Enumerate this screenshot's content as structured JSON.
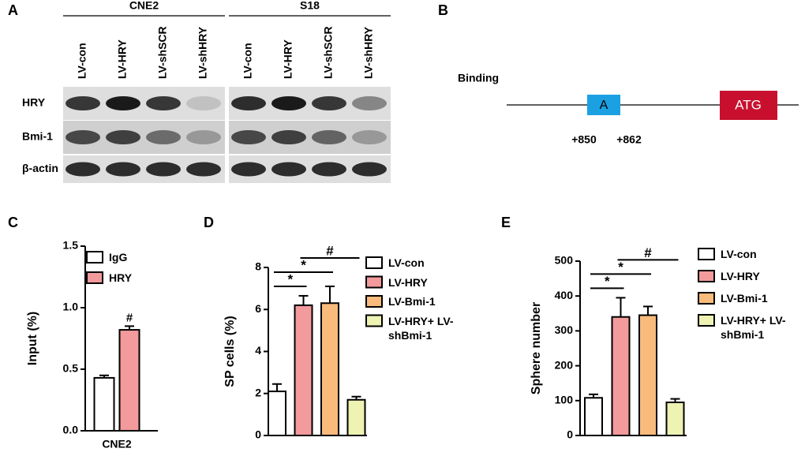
{
  "blot": {
    "panel": "A",
    "groups": [
      "CNE2",
      "S18"
    ],
    "lanes": [
      "LV-con",
      "LV-HRY",
      "LV-shSCR",
      "LV-shHRY",
      "LV-con",
      "LV-HRY",
      "LV-shSCR",
      "LV-shHRY"
    ],
    "rows": [
      "HRY",
      "Bmi-1",
      "β-actin"
    ]
  },
  "diagram": {
    "panel": "B",
    "title": "Binding",
    "site": "A",
    "start": "+850",
    "end": "+862",
    "codon": "ATG"
  },
  "chart_data": [
    {
      "type": "bar",
      "panel": "C",
      "ylabel": "Input (%)",
      "categories": [
        "CNE2"
      ],
      "series": [
        {
          "name": "IgG",
          "color": "#ffffff",
          "values": [
            0.43
          ],
          "errors": [
            0.02
          ]
        },
        {
          "name": "HRY",
          "color": "#f29a9c",
          "values": [
            0.82
          ],
          "errors": [
            0.03
          ]
        }
      ],
      "annotations": [
        {
          "text": "#",
          "series": 1
        }
      ],
      "ylim": [
        0,
        1.5
      ],
      "yticks": [
        {
          "value": 0,
          "label": "0.0"
        },
        0.5,
        {
          "value": 1,
          "label": "1.0"
        },
        1.5
      ]
    },
    {
      "type": "bar",
      "panel": "D",
      "ylabel": "SP cells (%)",
      "categories": [
        null
      ],
      "series": [
        {
          "name": "LV-con",
          "color": "#ffffff",
          "values": [
            2.1
          ],
          "errors": [
            0.35
          ]
        },
        {
          "name": "LV-HRY",
          "color": "#f29a9c",
          "values": [
            6.2
          ],
          "errors": [
            0.45
          ]
        },
        {
          "name": "LV-Bmi-1",
          "color": "#f8bb7c",
          "values": [
            6.3
          ],
          "errors": [
            0.8
          ]
        },
        {
          "name": "LV-HRY+ LV-shBmi-1",
          "color": "#eef2b2",
          "values": [
            1.7
          ],
          "errors": [
            0.15
          ]
        }
      ],
      "brackets": [
        {
          "text": "*",
          "between": [
            0,
            1
          ]
        },
        {
          "text": "*",
          "between": [
            0,
            2
          ]
        },
        {
          "text": "#",
          "between": [
            1,
            3
          ]
        }
      ],
      "ylim": [
        0,
        8
      ],
      "yticks": [
        0,
        2,
        4,
        6,
        8
      ]
    },
    {
      "type": "bar",
      "panel": "E",
      "ylabel": "Sphere number",
      "categories": [
        null
      ],
      "series": [
        {
          "name": "LV-con",
          "color": "#ffffff",
          "values": [
            108
          ],
          "errors": [
            10
          ]
        },
        {
          "name": "LV-HRY",
          "color": "#f29a9c",
          "values": [
            340
          ],
          "errors": [
            55
          ]
        },
        {
          "name": "LV-Bmi-1",
          "color": "#f8bb7c",
          "values": [
            345
          ],
          "errors": [
            25
          ]
        },
        {
          "name": "LV-HRY+ LV-shBmi-1",
          "color": "#eef2b2",
          "values": [
            95
          ],
          "errors": [
            10
          ]
        }
      ],
      "brackets": [
        {
          "text": "*",
          "between": [
            0,
            1
          ]
        },
        {
          "text": "*",
          "between": [
            0,
            2
          ]
        },
        {
          "text": "#",
          "between": [
            1,
            3
          ]
        }
      ],
      "ylim": [
        0,
        500
      ],
      "yticks": [
        0,
        100,
        200,
        300,
        400,
        500
      ]
    }
  ]
}
